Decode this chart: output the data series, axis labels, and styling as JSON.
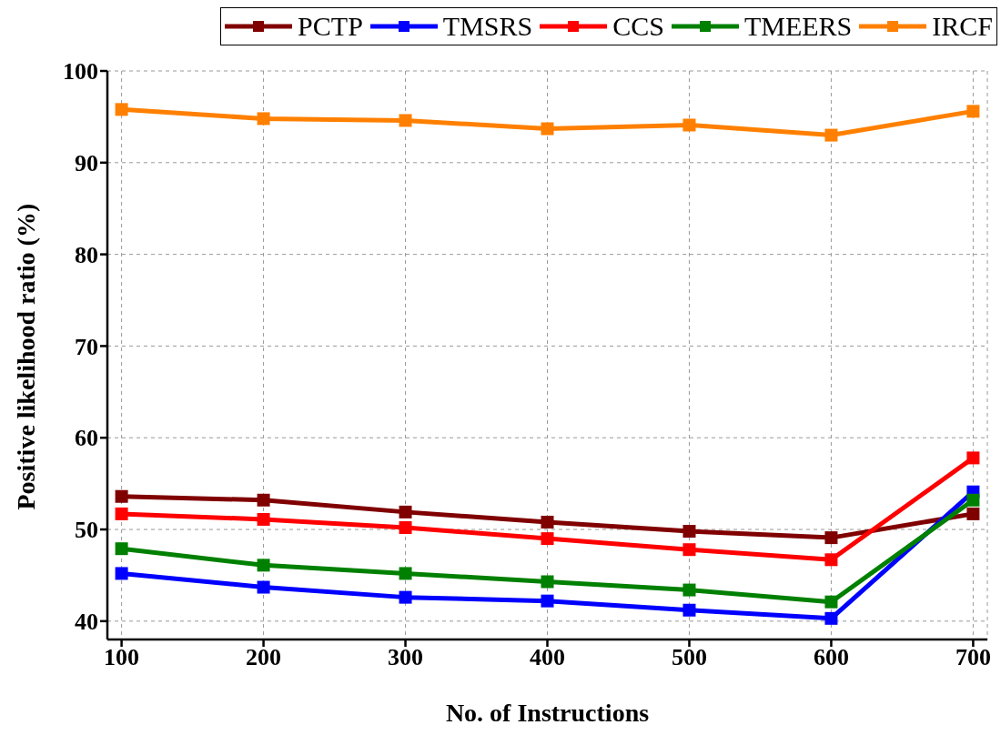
{
  "chart_data": {
    "type": "line",
    "xlabel": "No. of  Instructions",
    "ylabel": "Positive likelihood ratio (%)",
    "x": [
      100,
      200,
      300,
      400,
      500,
      600,
      700
    ],
    "series": [
      {
        "name": "PCTP",
        "color": "#800000",
        "values": [
          53.6,
          53.2,
          51.9,
          50.8,
          49.8,
          49.1,
          51.7
        ]
      },
      {
        "name": "TMSRS",
        "color": "#0000ff",
        "values": [
          45.2,
          43.7,
          42.6,
          42.2,
          41.2,
          40.3,
          54.1
        ]
      },
      {
        "name": "CCS",
        "color": "#ff0000",
        "values": [
          51.7,
          51.1,
          50.2,
          49.0,
          47.8,
          46.7,
          57.8
        ]
      },
      {
        "name": "TMEERS",
        "color": "#008000",
        "values": [
          47.9,
          46.1,
          45.2,
          44.3,
          43.4,
          42.1,
          53.2
        ]
      },
      {
        "name": "IRCF",
        "color": "#ff8000",
        "values": [
          95.8,
          94.8,
          94.6,
          93.7,
          94.1,
          93.0,
          95.6
        ]
      }
    ],
    "xlim": [
      90,
      710
    ],
    "xticks": [
      100,
      200,
      300,
      400,
      500,
      600,
      700
    ],
    "ylim": [
      38,
      100
    ],
    "yticks": [
      40,
      50,
      60,
      70,
      80,
      90,
      100
    ],
    "grid": true,
    "legend": "top right",
    "marker": "square",
    "line_style": "solid"
  }
}
